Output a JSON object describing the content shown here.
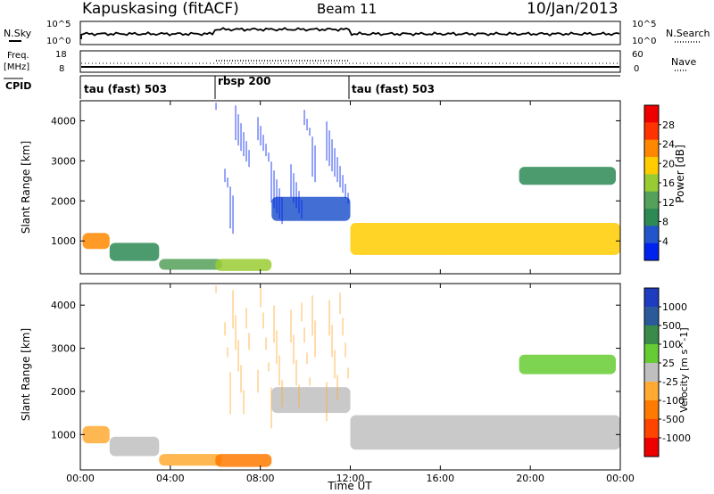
{
  "header": {
    "station": "Kapuskasing (fitACF)",
    "beam": "Beam 11",
    "date": "10/Jan/2013"
  },
  "noise_panel": {
    "left_label": "N.Sky",
    "right_label": "N.Search",
    "left_ticks": [
      "10^5",
      "10^0"
    ],
    "right_ticks": [
      "10^5",
      "10^0"
    ]
  },
  "freq_panel": {
    "left_label_1": "Freq.",
    "left_label_2": "[MHz]",
    "right_label": "Nave",
    "left_ticks": [
      "18",
      "8"
    ],
    "right_ticks": [
      "60",
      "0"
    ]
  },
  "cpid": {
    "label": "CPID",
    "segments": [
      {
        "name": "tau (fast) 503",
        "start": 0,
        "end": 6
      },
      {
        "name": "rbsp 200",
        "start": 6,
        "end": 12
      },
      {
        "name": "tau (fast) 503",
        "start": 12,
        "end": 24
      }
    ]
  },
  "colors": {
    "power_scale": [
      "#0022ee",
      "#2255cc",
      "#2d8a55",
      "#55a05a",
      "#99cc33",
      "#ffcc00",
      "#ff8800",
      "#ff3300",
      "#ee0000"
    ],
    "velocity_scale": [
      "#1e3cc0",
      "#2a5a9a",
      "#3a8a4a",
      "#66cc33",
      "#bfbfbf",
      "#ffaa33",
      "#ff7a00",
      "#ff4400",
      "#ee0000"
    ]
  },
  "chart_data": [
    {
      "type": "heatmap",
      "name": "power",
      "title": "",
      "xlabel": "",
      "ylabel": "Slant Range [km]",
      "xlim": [
        0,
        24
      ],
      "ylim": [
        180,
        4500
      ],
      "yticks": [
        "1000",
        "2000",
        "3000",
        "4000"
      ],
      "colorbar": {
        "label": "Power [dB]",
        "ticks": [
          "4",
          "8",
          "12",
          "16",
          "20",
          "24",
          "28"
        ]
      },
      "regions": [
        {
          "t0": 0.1,
          "t1": 1.3,
          "r0": 800,
          "r1": 1200,
          "level": 6
        },
        {
          "t0": 1.3,
          "t1": 3.5,
          "r0": 500,
          "r1": 950,
          "level": 2
        },
        {
          "t0": 3.5,
          "t1": 6.3,
          "r0": 280,
          "r1": 550,
          "level": 3
        },
        {
          "t0": 6.0,
          "t1": 8.5,
          "r0": 250,
          "r1": 550,
          "level": 4
        },
        {
          "t0": 8.5,
          "t1": 12.0,
          "r0": 1500,
          "r1": 2100,
          "level": 1
        },
        {
          "t0": 12.0,
          "t1": 24.0,
          "r0": 650,
          "r1": 1450,
          "level": 5
        },
        {
          "t0": 19.5,
          "t1": 23.8,
          "r0": 2400,
          "r1": 2850,
          "level": 2
        },
        {
          "t0": 6.0,
          "t1": 12.0,
          "r0": 300,
          "r1": 4450,
          "level": 0
        }
      ]
    },
    {
      "type": "heatmap",
      "name": "velocity",
      "title": "",
      "xlabel": "Time UT",
      "ylabel": "Slant Range [km]",
      "xlim": [
        0,
        24
      ],
      "ylim": [
        180,
        4500
      ],
      "xticks": [
        "00:00",
        "04:00",
        "08:00",
        "12:00",
        "16:00",
        "20:00",
        "00:00"
      ],
      "yticks": [
        "1000",
        "2000",
        "3000",
        "4000"
      ],
      "colorbar": {
        "label": "Velocity [m s^-1]",
        "ticks": [
          "1000",
          "500",
          "100",
          "25",
          "-25",
          "-100",
          "-500",
          "-1000"
        ]
      },
      "regions": [
        {
          "t0": 0.1,
          "t1": 1.3,
          "r0": 800,
          "r1": 1200,
          "level": 5
        },
        {
          "t0": 1.3,
          "t1": 3.5,
          "r0": 500,
          "r1": 950,
          "level": 4
        },
        {
          "t0": 3.5,
          "t1": 6.3,
          "r0": 280,
          "r1": 550,
          "level": 5
        },
        {
          "t0": 6.0,
          "t1": 8.5,
          "r0": 250,
          "r1": 550,
          "level": 6
        },
        {
          "t0": 8.5,
          "t1": 12.0,
          "r0": 1500,
          "r1": 2100,
          "level": 4
        },
        {
          "t0": 12.0,
          "t1": 24.0,
          "r0": 650,
          "r1": 1450,
          "level": 4
        },
        {
          "t0": 19.5,
          "t1": 23.8,
          "r0": 2400,
          "r1": 2850,
          "level": 3
        },
        {
          "t0": 6.0,
          "t1": 12.0,
          "r0": 300,
          "r1": 4450,
          "level": 5
        }
      ]
    }
  ]
}
